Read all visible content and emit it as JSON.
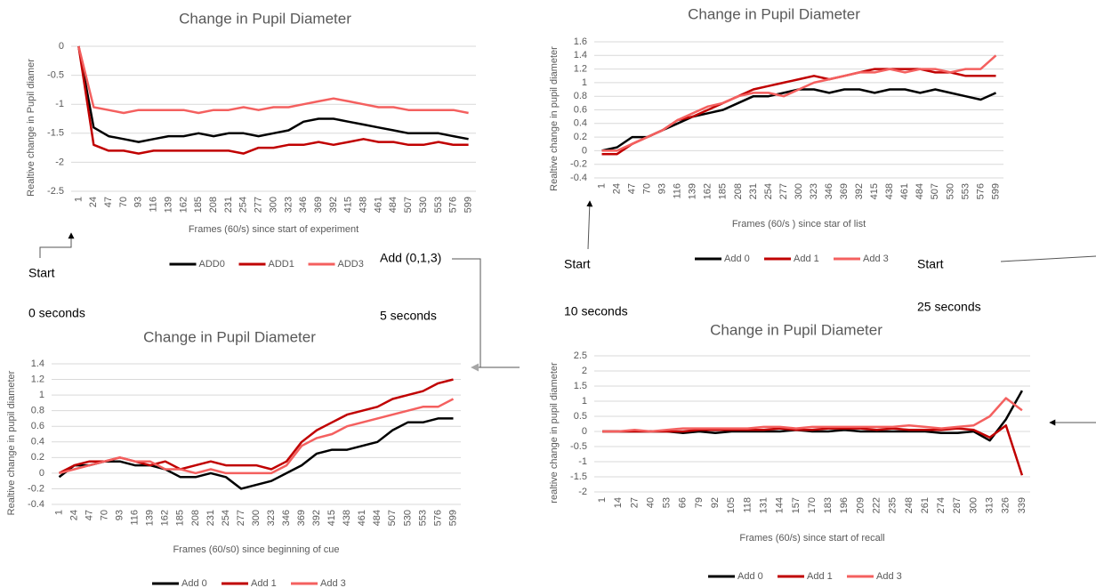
{
  "chart_data": [
    {
      "type": "line",
      "title": "Change in Pupil Diameter",
      "x_label": "Frames (60/s) since start of experiment",
      "y_label": "Realtive change in Pupil diamer",
      "categories": [
        "1",
        "24",
        "47",
        "70",
        "93",
        "116",
        "139",
        "162",
        "185",
        "208",
        "231",
        "254",
        "277",
        "300",
        "323",
        "346",
        "369",
        "392",
        "415",
        "438",
        "461",
        "484",
        "507",
        "530",
        "553",
        "576",
        "599"
      ],
      "series": [
        {
          "name": "ADD0",
          "color": "#000000",
          "values": [
            0,
            -1.4,
            -1.55,
            -1.6,
            -1.65,
            -1.6,
            -1.55,
            -1.55,
            -1.5,
            -1.55,
            -1.5,
            -1.5,
            -1.55,
            -1.5,
            -1.45,
            -1.3,
            -1.25,
            -1.25,
            -1.3,
            -1.35,
            -1.4,
            -1.45,
            -1.5,
            -1.5,
            -1.5,
            -1.55,
            -1.6
          ]
        },
        {
          "name": "ADD1",
          "color": "#c00000",
          "values": [
            0,
            -1.7,
            -1.8,
            -1.8,
            -1.85,
            -1.8,
            -1.8,
            -1.8,
            -1.8,
            -1.8,
            -1.8,
            -1.85,
            -1.75,
            -1.75,
            -1.7,
            -1.7,
            -1.65,
            -1.7,
            -1.65,
            -1.6,
            -1.65,
            -1.65,
            -1.7,
            -1.7,
            -1.65,
            -1.7,
            -1.7
          ]
        },
        {
          "name": "ADD3",
          "color": "#f4605f",
          "values": [
            0,
            -1.05,
            -1.1,
            -1.15,
            -1.1,
            -1.1,
            -1.1,
            -1.1,
            -1.15,
            -1.1,
            -1.1,
            -1.05,
            -1.1,
            -1.05,
            -1.05,
            -1.0,
            -0.95,
            -0.9,
            -0.95,
            -1.0,
            -1.05,
            -1.05,
            -1.1,
            -1.1,
            -1.1,
            -1.1,
            -1.15
          ]
        }
      ],
      "ylim": [
        -2.5,
        0
      ],
      "yticks": [
        -2.5,
        -2,
        -1.5,
        -1,
        -0.5,
        0
      ],
      "grid": true,
      "legend": "bottom"
    },
    {
      "type": "line",
      "title": "Change in Pupil Diameter",
      "x_label": "Frames (60/s ) since star of list",
      "y_label": "Realtive change in pupil diameter",
      "categories": [
        "1",
        "24",
        "47",
        "70",
        "93",
        "116",
        "139",
        "162",
        "185",
        "208",
        "231",
        "254",
        "277",
        "300",
        "323",
        "346",
        "369",
        "392",
        "415",
        "438",
        "461",
        "484",
        "507",
        "530",
        "553",
        "576",
        "599"
      ],
      "series": [
        {
          "name": "Add 0",
          "color": "#000000",
          "values": [
            0,
            0.05,
            0.2,
            0.2,
            0.3,
            0.4,
            0.5,
            0.55,
            0.6,
            0.7,
            0.8,
            0.8,
            0.85,
            0.9,
            0.9,
            0.85,
            0.9,
            0.9,
            0.85,
            0.9,
            0.9,
            0.85,
            0.9,
            0.85,
            0.8,
            0.75,
            0.85
          ]
        },
        {
          "name": "Add 1",
          "color": "#c00000",
          "values": [
            -0.05,
            -0.05,
            0.1,
            0.2,
            0.3,
            0.45,
            0.5,
            0.6,
            0.7,
            0.8,
            0.9,
            0.95,
            1.0,
            1.05,
            1.1,
            1.05,
            1.1,
            1.15,
            1.2,
            1.2,
            1.2,
            1.2,
            1.15,
            1.15,
            1.1,
            1.1,
            1.1
          ]
        },
        {
          "name": "Add 3",
          "color": "#f4605f",
          "values": [
            0,
            0,
            0.1,
            0.2,
            0.3,
            0.45,
            0.55,
            0.65,
            0.7,
            0.8,
            0.85,
            0.85,
            0.8,
            0.9,
            1.0,
            1.05,
            1.1,
            1.15,
            1.15,
            1.2,
            1.15,
            1.2,
            1.2,
            1.15,
            1.2,
            1.2,
            1.4
          ]
        }
      ],
      "ylim": [
        -0.4,
        1.6
      ],
      "yticks": [
        -0.4,
        -0.2,
        0,
        0.2,
        0.4,
        0.6,
        0.8,
        1,
        1.2,
        1.4,
        1.6
      ],
      "grid": true,
      "legend": "bottom"
    },
    {
      "type": "line",
      "title": "Change in Pupil Diameter",
      "x_label": "Frames (60/s0) since beginning of cue",
      "y_label": "Realtive change in pupil diameter",
      "categories": [
        "1",
        "24",
        "47",
        "70",
        "93",
        "116",
        "139",
        "162",
        "185",
        "208",
        "231",
        "254",
        "277",
        "300",
        "323",
        "346",
        "369",
        "392",
        "415",
        "438",
        "461",
        "484",
        "507",
        "530",
        "553",
        "576",
        "599"
      ],
      "series": [
        {
          "name": "Add 0",
          "color": "#000000",
          "values": [
            -0.05,
            0.1,
            0.1,
            0.15,
            0.15,
            0.1,
            0.1,
            0.05,
            -0.05,
            -0.05,
            0,
            -0.05,
            -0.2,
            -0.15,
            -0.1,
            0,
            0.1,
            0.25,
            0.3,
            0.3,
            0.35,
            0.4,
            0.55,
            0.65,
            0.65,
            0.7,
            0.7
          ]
        },
        {
          "name": "Add 1",
          "color": "#c00000",
          "values": [
            0,
            0.1,
            0.15,
            0.15,
            0.2,
            0.15,
            0.1,
            0.15,
            0.05,
            0.1,
            0.15,
            0.1,
            0.1,
            0.1,
            0.05,
            0.15,
            0.4,
            0.55,
            0.65,
            0.75,
            0.8,
            0.85,
            0.95,
            1.0,
            1.05,
            1.15,
            1.2
          ]
        },
        {
          "name": "Add 3",
          "color": "#f4605f",
          "values": [
            0,
            0.05,
            0.1,
            0.15,
            0.2,
            0.15,
            0.15,
            0.05,
            0.05,
            0,
            0.05,
            0,
            0,
            0,
            0,
            0.1,
            0.35,
            0.45,
            0.5,
            0.6,
            0.65,
            0.7,
            0.75,
            0.8,
            0.85,
            0.85,
            0.95
          ]
        }
      ],
      "ylim": [
        -0.4,
        1.4
      ],
      "yticks": [
        -0.4,
        -0.2,
        0,
        0.2,
        0.4,
        0.6,
        0.8,
        1,
        1.2,
        1.4
      ],
      "grid": true,
      "legend": "bottom"
    },
    {
      "type": "line",
      "title": "Change in Pupil Diameter",
      "x_label": "Frames (60/s) since start of recall",
      "y_label": "realtive change in pupil diameter",
      "categories": [
        "1",
        "14",
        "27",
        "40",
        "53",
        "66",
        "79",
        "92",
        "105",
        "118",
        "131",
        "144",
        "157",
        "170",
        "183",
        "196",
        "209",
        "222",
        "235",
        "248",
        "261",
        "274",
        "287",
        "300",
        "313",
        "326",
        "339"
      ],
      "series": [
        {
          "name": "Add 0",
          "color": "#000000",
          "values": [
            0,
            0,
            0,
            0,
            0,
            -0.05,
            0,
            -0.05,
            0,
            0,
            0,
            0,
            0.05,
            0,
            0,
            0.05,
            0,
            0,
            0,
            0,
            0,
            -0.05,
            -0.05,
            0,
            -0.3,
            0.4,
            1.35
          ]
        },
        {
          "name": "Add 1",
          "color": "#c00000",
          "values": [
            0,
            0,
            0,
            0,
            0,
            0,
            0.05,
            0.05,
            0.05,
            0.05,
            0.05,
            0.1,
            0.05,
            0.05,
            0.1,
            0.1,
            0.1,
            0.05,
            0.1,
            0.05,
            0.05,
            0.05,
            0.1,
            0.05,
            -0.2,
            0.2,
            -1.45
          ]
        },
        {
          "name": "Add 3",
          "color": "#f4605f",
          "values": [
            0,
            0,
            0.05,
            0,
            0.05,
            0.1,
            0.1,
            0.1,
            0.1,
            0.1,
            0.15,
            0.15,
            0.1,
            0.15,
            0.15,
            0.15,
            0.15,
            0.15,
            0.15,
            0.2,
            0.15,
            0.1,
            0.15,
            0.2,
            0.5,
            1.1,
            0.7
          ]
        }
      ],
      "ylim": [
        -2,
        2.5
      ],
      "yticks": [
        -2,
        -1.5,
        -1,
        -0.5,
        0,
        0.5,
        1,
        1.5,
        2,
        2.5
      ],
      "grid": true,
      "legend": "bottom"
    }
  ],
  "annotations": [
    "Start",
    "0 seconds",
    "Add (0,1,3)",
    "5 seconds",
    "Start",
    "10 seconds",
    "Start",
    "25 seconds"
  ]
}
